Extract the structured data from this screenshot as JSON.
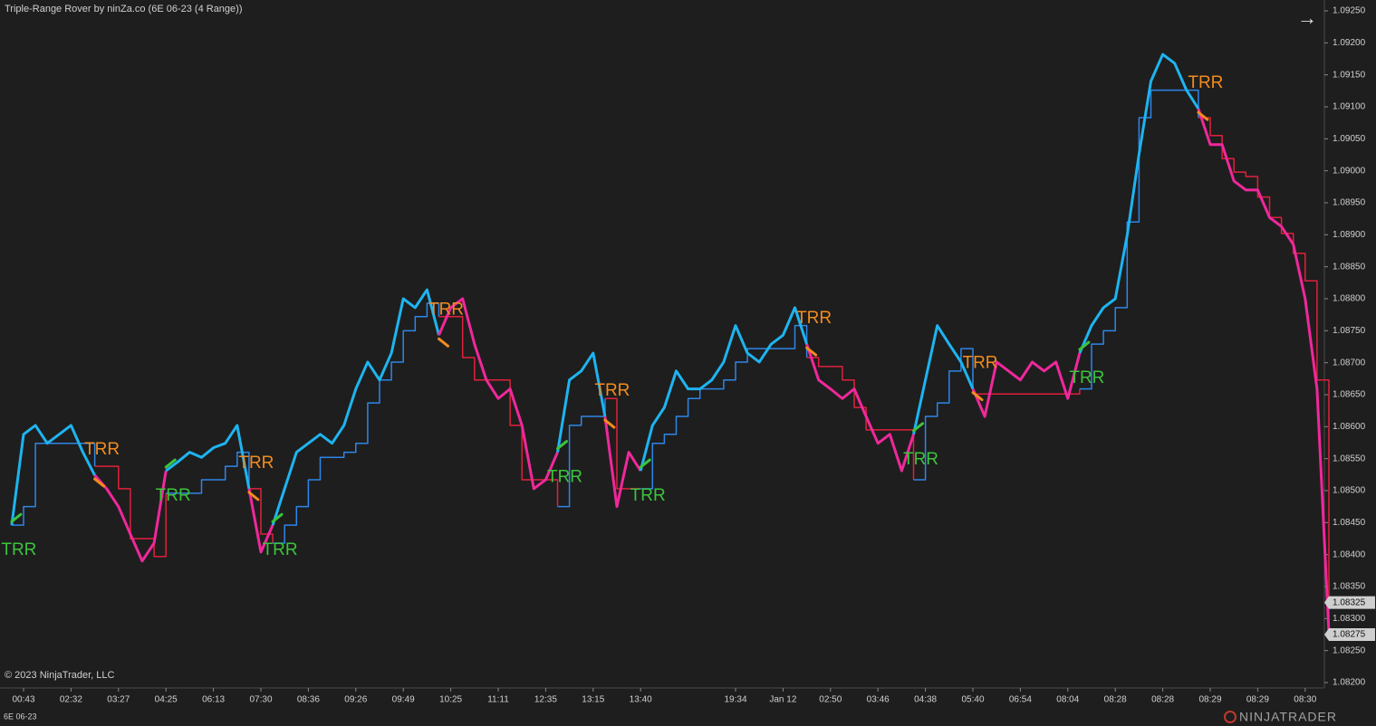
{
  "chart_data": {
    "type": "line",
    "title": "Triple-Range Rover by ninZa.co (6E 06-23 (4 Range))",
    "instrument": "6E 06-23",
    "copyright": "© 2023 NinjaTrader, LLC",
    "logo": "NINJATRADER",
    "categories": [
      null,
      "00:43",
      null,
      null,
      null,
      "02:32",
      null,
      null,
      null,
      "03:27",
      null,
      null,
      null,
      "04:25",
      null,
      null,
      null,
      "06:13",
      null,
      null,
      null,
      "07:30",
      null,
      null,
      null,
      "08:36",
      null,
      null,
      null,
      "09:26",
      null,
      null,
      null,
      "09:49",
      null,
      null,
      null,
      "10:25",
      null,
      null,
      null,
      "11:11",
      null,
      null,
      null,
      "12:35",
      null,
      null,
      null,
      "13:15",
      null,
      null,
      null,
      "13:40",
      null,
      null,
      null,
      null,
      null,
      null,
      null,
      "19:34",
      null,
      null,
      null,
      "Jan 12",
      null,
      null,
      null,
      "02:50",
      null,
      null,
      null,
      "03:46",
      null,
      null,
      null,
      "04:38",
      null,
      null,
      null,
      "05:40",
      null,
      null,
      null,
      "06:54",
      null,
      null,
      null,
      "08:04",
      null,
      null,
      null,
      "08:28",
      null,
      null,
      null,
      "08:28",
      null,
      null,
      null,
      "08:29",
      null,
      null,
      null,
      "08:29",
      null,
      null,
      null,
      "08:30",
      null,
      null
    ],
    "series": [
      {
        "values": [
          1.08446,
          1.08588,
          1.08602,
          1.08574,
          1.08588,
          1.08602,
          1.0856,
          1.08524,
          1.08503,
          1.08475,
          1.08432,
          1.0839,
          1.08418,
          1.08531,
          1.08545,
          1.0856,
          1.08552,
          1.08567,
          1.08574,
          1.08602,
          1.08503,
          1.08404,
          1.08446,
          1.08503,
          1.0856,
          1.08574,
          1.08588,
          1.08574,
          1.08602,
          1.08659,
          1.08701,
          1.08673,
          1.08715,
          1.088,
          1.08786,
          1.08814,
          1.08743,
          1.08786,
          1.088,
          1.08729,
          1.08673,
          1.08644,
          1.08659,
          1.08602,
          1.08503,
          1.08517,
          1.0856,
          1.08673,
          1.08687,
          1.08715,
          1.08616,
          1.08475,
          1.0856,
          1.08531,
          1.08602,
          1.0863,
          1.08687,
          1.08659,
          1.08659,
          1.08673,
          1.08701,
          1.08758,
          1.08715,
          1.08701,
          1.08729,
          1.08743,
          1.08786,
          1.08729,
          1.08673,
          1.08659,
          1.08644,
          1.08659,
          1.08616,
          1.08574,
          1.08588,
          1.08531,
          1.08588,
          1.08673,
          1.08758,
          1.08729,
          1.08701,
          1.08659,
          1.08616,
          1.08701,
          1.08687,
          1.08673,
          1.08701,
          1.08687,
          1.08701,
          1.08644,
          1.08715,
          1.08758,
          1.08786,
          1.088,
          1.08899,
          1.09026,
          1.0914,
          1.09182,
          1.09168,
          1.09126,
          1.09097,
          1.09041,
          1.09041,
          1.08984,
          1.0897,
          1.0897,
          1.08927,
          1.08913,
          1.08885,
          1.088,
          1.08659,
          1.08277
        ],
        "width": 3
      },
      {
        "values": [
          1.08446,
          1.08475,
          1.08574,
          1.08574,
          1.08574,
          1.08574,
          1.08574,
          1.08538,
          1.08538,
          1.08503,
          1.08425,
          1.08425,
          1.08397,
          1.08496,
          1.08496,
          1.08496,
          1.08517,
          1.08517,
          1.08538,
          1.0856,
          1.08503,
          1.08432,
          1.08418,
          1.08446,
          1.08475,
          1.08517,
          1.08552,
          1.08552,
          1.0856,
          1.08574,
          1.08637,
          1.08673,
          1.08701,
          1.0875,
          1.08772,
          1.08793,
          1.08772,
          1.08772,
          1.08708,
          1.08673,
          1.08673,
          1.08673,
          1.08602,
          1.08517,
          1.08517,
          1.08517,
          1.08475,
          1.08602,
          1.08616,
          1.08616,
          1.08644,
          1.08503,
          1.08503,
          1.08503,
          1.08574,
          1.08588,
          1.08616,
          1.08644,
          1.08659,
          1.08659,
          1.08673,
          1.08701,
          1.08722,
          1.08722,
          1.08722,
          1.08722,
          1.08758,
          1.08708,
          1.08694,
          1.08694,
          1.08673,
          1.0863,
          1.08595,
          1.08595,
          1.08595,
          1.08595,
          1.08517,
          1.08616,
          1.08637,
          1.08687,
          1.08722,
          1.08651,
          1.08651,
          1.08651,
          1.08651,
          1.08651,
          1.08651,
          1.08651,
          1.08651,
          1.08651,
          1.08659,
          1.08729,
          1.0875,
          1.08786,
          1.0892,
          1.09083,
          1.09126,
          1.09126,
          1.09126,
          1.09126,
          1.09083,
          1.09055,
          1.09019,
          1.08998,
          1.08991,
          1.08959,
          1.08927,
          1.08902,
          1.08871,
          1.08828,
          1.08673,
          1.08277
        ],
        "width": 1.5,
        "step": true
      }
    ],
    "trend_segments": [
      {
        "start": 0,
        "end": 6,
        "color": "#1eb4f0",
        "stop_color": "#2e86e8"
      },
      {
        "start": 7,
        "end": 12,
        "color": "#f0289b",
        "stop_color": "#e0203c"
      },
      {
        "start": 13,
        "end": 19,
        "color": "#1eb4f0",
        "stop_color": "#2e86e8"
      },
      {
        "start": 20,
        "end": 21,
        "color": "#f0289b",
        "stop_color": "#e0203c"
      },
      {
        "start": 22,
        "end": 35,
        "color": "#1eb4f0",
        "stop_color": "#2e86e8"
      },
      {
        "start": 36,
        "end": 45,
        "color": "#f0289b",
        "stop_color": "#e0203c"
      },
      {
        "start": 46,
        "end": 49,
        "color": "#1eb4f0",
        "stop_color": "#2e86e8"
      },
      {
        "start": 50,
        "end": 52,
        "color": "#f0289b",
        "stop_color": "#e0203c"
      },
      {
        "start": 53,
        "end": 66,
        "color": "#1eb4f0",
        "stop_color": "#2e86e8"
      },
      {
        "start": 67,
        "end": 75,
        "color": "#f0289b",
        "stop_color": "#e0203c"
      },
      {
        "start": 76,
        "end": 80,
        "color": "#1eb4f0",
        "stop_color": "#2e86e8"
      },
      {
        "start": 81,
        "end": 89,
        "color": "#f0289b",
        "stop_color": "#e0203c"
      },
      {
        "start": 90,
        "end": 99,
        "color": "#1eb4f0",
        "stop_color": "#2e86e8"
      },
      {
        "start": 100,
        "end": 111,
        "color": "#f0289b",
        "stop_color": "#e0203c"
      }
    ],
    "annotations": [
      {
        "text": "TRR",
        "index": 0,
        "position": "below",
        "color": "#3cc43c"
      },
      {
        "text": "TRR",
        "index": 7,
        "position": "above",
        "color": "#f28c1e"
      },
      {
        "text": "TRR",
        "index": 13,
        "position": "below",
        "color": "#3cc43c"
      },
      {
        "text": "TRR",
        "index": 20,
        "position": "above",
        "color": "#f28c1e"
      },
      {
        "text": "TRR",
        "index": 22,
        "position": "below",
        "color": "#3cc43c"
      },
      {
        "text": "TRR",
        "index": 36,
        "position": "above",
        "color": "#f28c1e"
      },
      {
        "text": "TRR",
        "index": 46,
        "position": "below",
        "color": "#3cc43c"
      },
      {
        "text": "TRR",
        "index": 50,
        "position": "above",
        "color": "#f28c1e"
      },
      {
        "text": "TRR",
        "index": 53,
        "position": "below",
        "color": "#3cc43c"
      },
      {
        "text": "TRR",
        "index": 67,
        "position": "above",
        "color": "#f28c1e"
      },
      {
        "text": "TRR",
        "index": 76,
        "position": "below",
        "color": "#3cc43c"
      },
      {
        "text": "TRR",
        "index": 81,
        "position": "above",
        "color": "#f28c1e"
      },
      {
        "text": "TRR",
        "index": 90,
        "position": "below",
        "color": "#3cc43c"
      },
      {
        "text": "TRR",
        "index": 100,
        "position": "above",
        "color": "#f28c1e"
      }
    ],
    "ylim": [
      1.0819,
      1.0927
    ],
    "yticks": [
      {
        "value": 1.0925,
        "label": "1.09250"
      },
      {
        "value": 1.092,
        "label": "1.09200"
      },
      {
        "value": 1.0915,
        "label": "1.09150"
      },
      {
        "value": 1.091,
        "label": "1.09100"
      },
      {
        "value": 1.0905,
        "label": "1.09050"
      },
      {
        "value": 1.09,
        "label": "1.09000"
      },
      {
        "value": 1.0895,
        "label": "1.08950"
      },
      {
        "value": 1.089,
        "label": "1.08900"
      },
      {
        "value": 1.0885,
        "label": "1.08850"
      },
      {
        "value": 1.088,
        "label": "1.08800"
      },
      {
        "value": 1.0875,
        "label": "1.08750"
      },
      {
        "value": 1.087,
        "label": "1.08700"
      },
      {
        "value": 1.0865,
        "label": "1.08650"
      },
      {
        "value": 1.086,
        "label": "1.08600"
      },
      {
        "value": 1.0855,
        "label": "1.08550"
      },
      {
        "value": 1.085,
        "label": "1.08500"
      },
      {
        "value": 1.0845,
        "label": "1.08450"
      },
      {
        "value": 1.084,
        "label": "1.08400"
      },
      {
        "value": 1.0835,
        "label": "1.08350"
      },
      {
        "value": 1.083,
        "label": "1.08300"
      },
      {
        "value": 1.0825,
        "label": "1.08250"
      },
      {
        "value": 1.082,
        "label": "1.08200"
      }
    ],
    "price_markers": [
      {
        "value": 1.08325,
        "label": "1.08325"
      },
      {
        "value": 1.08275,
        "label": "1.08275"
      }
    ],
    "grid": false
  }
}
